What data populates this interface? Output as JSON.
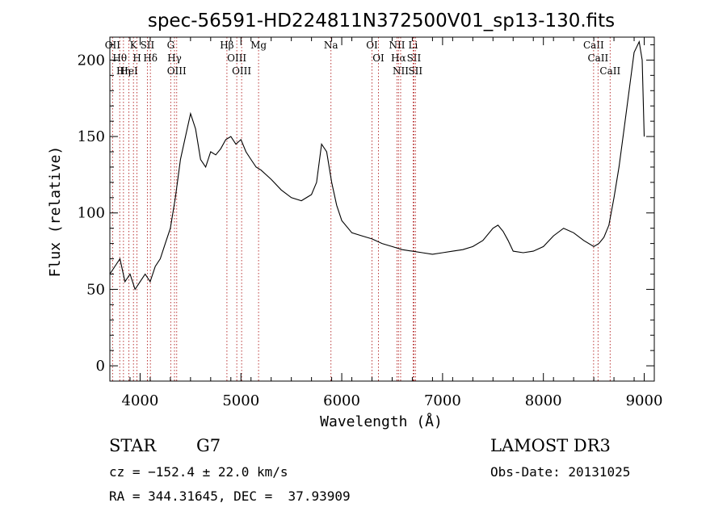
{
  "chart_data": {
    "type": "line",
    "title": "spec-56591-HD224811N372500V01_sp13-130.fits",
    "xlabel": "Wavelength (Å)",
    "ylabel": "Flux (relative)",
    "xlim": [
      3700,
      9100
    ],
    "ylim": [
      -10,
      215
    ],
    "x_ticks": [
      4000,
      5000,
      6000,
      7000,
      8000,
      9000
    ],
    "y_ticks": [
      0,
      50,
      100,
      150,
      200
    ],
    "grid": false,
    "series": [
      {
        "color": "#000000",
        "x": [
          3700,
          3750,
          3800,
          3850,
          3900,
          3950,
          4000,
          4050,
          4100,
          4150,
          4200,
          4250,
          4300,
          4350,
          4400,
          4450,
          4500,
          4550,
          4600,
          4650,
          4700,
          4750,
          4800,
          4850,
          4900,
          4950,
          5000,
          5050,
          5100,
          5150,
          5200,
          5300,
          5400,
          5500,
          5600,
          5700,
          5750,
          5800,
          5850,
          5900,
          5950,
          6000,
          6100,
          6200,
          6300,
          6400,
          6500,
          6600,
          6700,
          6800,
          6900,
          7000,
          7100,
          7200,
          7300,
          7400,
          7500,
          7550,
          7600,
          7650,
          7700,
          7800,
          7900,
          8000,
          8100,
          8200,
          8300,
          8400,
          8500,
          8550,
          8600,
          8650,
          8700,
          8750,
          8800,
          8850,
          8900,
          8950,
          8980,
          9000
        ],
        "y": [
          60,
          65,
          70,
          55,
          60,
          50,
          55,
          60,
          55,
          65,
          70,
          80,
          90,
          110,
          135,
          150,
          165,
          155,
          135,
          130,
          140,
          138,
          142,
          148,
          150,
          145,
          148,
          140,
          135,
          130,
          128,
          122,
          115,
          110,
          108,
          112,
          120,
          145,
          140,
          120,
          105,
          95,
          87,
          85,
          83,
          80,
          78,
          76,
          75,
          74,
          73,
          74,
          75,
          76,
          78,
          82,
          90,
          92,
          88,
          82,
          75,
          74,
          75,
          78,
          85,
          90,
          87,
          82,
          78,
          80,
          84,
          92,
          110,
          130,
          155,
          180,
          205,
          212,
          200,
          150
        ]
      }
    ],
    "lines": [
      {
        "name": "Hθ",
        "x": 3798
      },
      {
        "name": "OII",
        "x": 3727
      },
      {
        "name": "K",
        "x": 3934
      },
      {
        "name": "HeI",
        "x": 3889
      },
      {
        "name": "Hη",
        "x": 3835
      },
      {
        "name": "H",
        "x": 3969
      },
      {
        "name": "Hδ",
        "x": 4102
      },
      {
        "name": "SII",
        "x": 4072
      },
      {
        "name": "OIII",
        "x": 4363
      },
      {
        "name": "Hγ",
        "x": 4341
      },
      {
        "name": "G",
        "x": 4304
      },
      {
        "name": "Hβ",
        "x": 4861
      },
      {
        "name": "OIII",
        "x": 5007
      },
      {
        "name": "OIII",
        "x": 4959
      },
      {
        "name": "Mg",
        "x": 5175
      },
      {
        "name": "Na",
        "x": 5893
      },
      {
        "name": "OI",
        "x": 6300
      },
      {
        "name": "OI",
        "x": 6364
      },
      {
        "name": "Hα",
        "x": 6563
      },
      {
        "name": "NII",
        "x": 6548
      },
      {
        "name": "NII",
        "x": 6584
      },
      {
        "name": "SII",
        "x": 6716
      },
      {
        "name": "Li",
        "x": 6708
      },
      {
        "name": "SII",
        "x": 6731
      },
      {
        "name": "CaII",
        "x": 8542
      },
      {
        "name": "CaII",
        "x": 8498
      },
      {
        "name": "CaII",
        "x": 8662
      }
    ]
  },
  "info": {
    "class_label": "STAR",
    "subclass": "G7",
    "survey": "LAMOST DR3",
    "cz": "cz = −152.4 ± 22.0 km/s",
    "obs_date": "Obs-Date: 20131025",
    "coords": "RA = 344.31645, DEC =  37.93909"
  }
}
